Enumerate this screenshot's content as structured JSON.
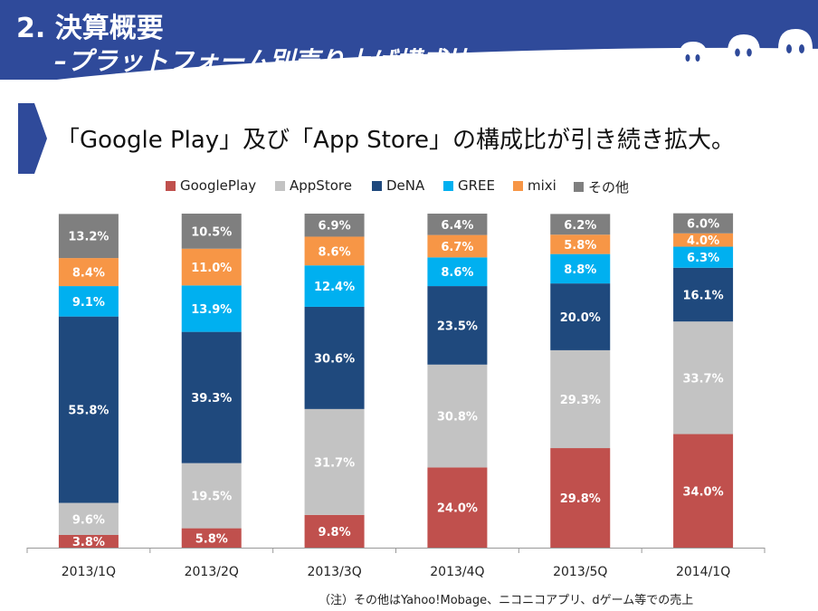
{
  "header": {
    "title_num": "2.",
    "title_main": "決算概要",
    "title_sub": "–プラットフォーム別売り上げ構成比 –"
  },
  "subtitle": "「Google Play」及び「App Store」の構成比が引き続き拡大。",
  "footnote": "（注）その他はYahoo!Mobage、ニコニコアプリ、dゲーム等での売上",
  "chart_data": {
    "type": "bar",
    "stacked": true,
    "normalized": true,
    "categories": [
      "2013/1Q",
      "2013/2Q",
      "2013/3Q",
      "2013/4Q",
      "2013/5Q",
      "2014/1Q"
    ],
    "series": [
      {
        "name": "GooglePlay",
        "color": "#c0504d",
        "values": [
          3.8,
          5.8,
          9.8,
          24.0,
          29.8,
          34.0
        ],
        "labels": [
          "3.8%",
          "5.8%",
          "9.8%",
          "24.0%",
          "29.8%",
          "34.0%"
        ]
      },
      {
        "name": "AppStore",
        "color": "#c3c3c3",
        "values": [
          9.6,
          19.5,
          31.7,
          30.8,
          29.3,
          33.7
        ],
        "labels": [
          "9.6%",
          "19.5%",
          "31.7%",
          "30.8%",
          "29.3%",
          "33.7%"
        ]
      },
      {
        "name": "DeNA",
        "color": "#1f497d",
        "values": [
          55.8,
          39.3,
          30.6,
          23.5,
          20.0,
          16.1
        ],
        "labels": [
          "55.8%",
          "39.3%",
          "30.6%",
          "23.5%",
          "20.0%",
          "16.1%"
        ]
      },
      {
        "name": "GREE",
        "color": "#00b0f0",
        "values": [
          9.1,
          13.9,
          12.4,
          8.6,
          8.8,
          6.3
        ],
        "labels": [
          "9.1%",
          "13.9%",
          "12.4%",
          "8.6%",
          "8.8%",
          "6.3%"
        ]
      },
      {
        "name": "mixi",
        "color": "#f79646",
        "values": [
          8.4,
          11.0,
          8.6,
          6.7,
          5.8,
          4.0
        ],
        "labels": [
          "8.4%",
          "11.0%",
          "8.6%",
          "6.7%",
          "5.8%",
          "4.0%"
        ]
      },
      {
        "name": "その他",
        "color": "#7f7f7f",
        "values": [
          13.2,
          10.5,
          6.9,
          6.4,
          6.2,
          6.0
        ],
        "labels": [
          "13.2%",
          "10.5%",
          "6.9%",
          "6.4%",
          "6.2%",
          "6.0%"
        ]
      }
    ],
    "ylim": [
      0,
      100
    ],
    "legend_position": "top",
    "grid": false
  }
}
